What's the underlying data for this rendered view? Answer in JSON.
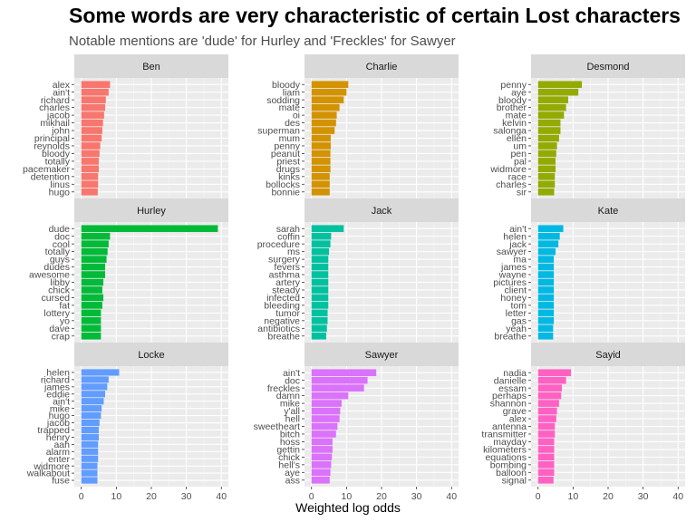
{
  "title": "Some words are very characteristic of certain Lost characters",
  "subtitle": "Notable mentions are 'dude' for Hurley and 'Freckles' for Sawyer",
  "chart_data": {
    "type": "bar",
    "orientation": "horizontal",
    "facet_layout": "3x3 grid",
    "xlabel": "Weighted log odds",
    "xlim": [
      0,
      40
    ],
    "x_ticks": [
      0,
      10,
      20,
      30,
      40
    ],
    "grid": true,
    "scales": "free_y",
    "facets": [
      {
        "name": "Ben",
        "color": "#F8766D",
        "categories": [
          "alex",
          "ain't",
          "richard",
          "charles",
          "jacob",
          "mikhail",
          "john",
          "principal",
          "reynolds",
          "bloody",
          "totally",
          "pacemaker",
          "detention",
          "linus",
          "hugo"
        ],
        "values": [
          8.2,
          7.8,
          7.0,
          6.8,
          6.5,
          6.2,
          6.0,
          5.8,
          5.4,
          5.2,
          5.0,
          5.0,
          4.8,
          4.8,
          4.7
        ]
      },
      {
        "name": "Charlie",
        "color": "#D39200",
        "categories": [
          "bloody",
          "liam",
          "sodding",
          "mate",
          "oi",
          "des",
          "superman",
          "mum",
          "penny",
          "peanut",
          "priest",
          "drugs",
          "kinks",
          "bollocks",
          "bonnie"
        ],
        "values": [
          10.5,
          10.0,
          9.2,
          8.0,
          7.2,
          7.0,
          6.6,
          5.5,
          5.5,
          5.4,
          5.4,
          5.4,
          5.2,
          5.2,
          5.2
        ]
      },
      {
        "name": "Desmond",
        "color": "#93AA00",
        "categories": [
          "penny",
          "aye",
          "bloody",
          "brother",
          "mate",
          "kelvin",
          "salonga",
          "ellen",
          "um",
          "pen",
          "pal",
          "widmore",
          "race",
          "charles",
          "sir"
        ],
        "values": [
          12.5,
          11.5,
          8.6,
          8.0,
          7.4,
          6.4,
          6.4,
          6.0,
          5.4,
          5.2,
          5.0,
          5.0,
          4.8,
          4.8,
          4.6
        ]
      },
      {
        "name": "Hurley",
        "color": "#00BA38",
        "categories": [
          "dude",
          "doc",
          "cool",
          "totally",
          "guys",
          "dudes",
          "awesome",
          "libby",
          "chick",
          "cursed",
          "fat",
          "lottery",
          "yo",
          "dave",
          "crap"
        ],
        "values": [
          39.0,
          8.2,
          7.8,
          7.5,
          7.2,
          6.8,
          6.8,
          6.3,
          6.0,
          6.3,
          6.0,
          5.6,
          5.6,
          5.6,
          5.6
        ]
      },
      {
        "name": "Jack",
        "color": "#00C19F",
        "categories": [
          "sarah",
          "coffin",
          "procedure",
          "ms",
          "surgery",
          "fevers",
          "asthma",
          "artery",
          "steady",
          "infected",
          "bleeding",
          "tumor",
          "negative",
          "antibiotics",
          "breathe"
        ],
        "values": [
          9.2,
          5.6,
          5.4,
          5.0,
          4.8,
          4.8,
          4.8,
          4.8,
          4.8,
          4.8,
          4.8,
          4.6,
          4.6,
          4.4,
          4.2
        ]
      },
      {
        "name": "Kate",
        "color": "#00B9E3",
        "categories": [
          "ain't",
          "helen",
          "jack",
          "sawyer",
          "ma",
          "james",
          "wayne",
          "pictures",
          "client",
          "honey",
          "tom",
          "letter",
          "gas",
          "yeah",
          "breathe"
        ],
        "values": [
          7.2,
          6.2,
          5.8,
          5.0,
          4.5,
          4.5,
          4.5,
          4.5,
          4.5,
          4.5,
          4.5,
          4.5,
          4.5,
          4.3,
          4.3
        ]
      },
      {
        "name": "Locke",
        "color": "#619CFF",
        "categories": [
          "helen",
          "richard",
          "james",
          "eddie",
          "ain't",
          "mike",
          "hugo",
          "jacob",
          "trapped",
          "henry",
          "aah",
          "alarm",
          "enter",
          "widmore",
          "walkabout",
          "fuse"
        ],
        "values": [
          10.8,
          7.8,
          7.4,
          6.8,
          6.4,
          5.8,
          5.6,
          5.2,
          5.0,
          5.0,
          4.8,
          4.8,
          4.8,
          4.6,
          4.6,
          4.6
        ]
      },
      {
        "name": "Sawyer",
        "color": "#DB72FB",
        "categories": [
          "ain't",
          "doc",
          "freckles",
          "damn",
          "mike",
          "y'all",
          "hell",
          "sweetheart",
          "bitch",
          "hoss",
          "gettin",
          "chick",
          "hell's",
          "aye",
          "ass"
        ],
        "values": [
          18.5,
          16.0,
          15.0,
          10.5,
          8.6,
          8.2,
          8.0,
          7.4,
          7.0,
          6.0,
          6.0,
          5.8,
          5.6,
          5.4,
          5.2
        ]
      },
      {
        "name": "Sayid",
        "color": "#FF61C3",
        "categories": [
          "nadia",
          "danielle",
          "essam",
          "perhaps",
          "shannon",
          "grave",
          "alex",
          "antenna",
          "transmitter",
          "mayday",
          "kilometers",
          "equations",
          "bombing",
          "balloon",
          "signal"
        ],
        "values": [
          9.4,
          8.0,
          6.8,
          6.6,
          6.0,
          5.4,
          5.2,
          4.8,
          4.8,
          4.6,
          4.6,
          4.6,
          4.6,
          4.6,
          4.4
        ]
      }
    ]
  }
}
